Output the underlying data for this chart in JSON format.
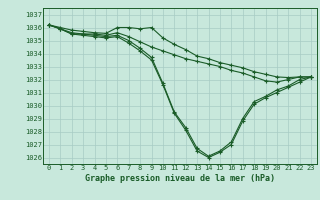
{
  "title": "Graphe pression niveau de la mer (hPa)",
  "background_color": "#c8e8dc",
  "grid_color": "#a8ccc4",
  "line_color": "#1a5c28",
  "xlabel_bg": "#2a7a3a",
  "xlabel_fg": "#c8e8dc",
  "xlim_min": -0.5,
  "xlim_max": 23.5,
  "ylim_min": 1025.5,
  "ylim_max": 1037.5,
  "yticks": [
    1026,
    1027,
    1028,
    1029,
    1030,
    1031,
    1032,
    1033,
    1034,
    1035,
    1036,
    1037
  ],
  "xticks": [
    0,
    1,
    2,
    3,
    4,
    5,
    6,
    7,
    8,
    9,
    10,
    11,
    12,
    13,
    14,
    15,
    16,
    17,
    18,
    19,
    20,
    21,
    22,
    23
  ],
  "series": [
    {
      "x": [
        0,
        1,
        2,
        3,
        4,
        5,
        6,
        7,
        8,
        9,
        10,
        11,
        12,
        13,
        14,
        15,
        16,
        17,
        18,
        19,
        20,
        21,
        22,
        23
      ],
      "y": [
        1036.2,
        1036.0,
        1035.8,
        1035.7,
        1035.6,
        1035.55,
        1036.0,
        1036.0,
        1035.9,
        1036.0,
        1035.2,
        1034.7,
        1034.3,
        1033.8,
        1033.6,
        1033.3,
        1033.1,
        1032.9,
        1032.6,
        1032.4,
        1032.2,
        1032.15,
        1032.2,
        1032.2
      ]
    },
    {
      "x": [
        0,
        1,
        2,
        3,
        4,
        5,
        6,
        7,
        8,
        9,
        10,
        11,
        12,
        13,
        14,
        15,
        16,
        17,
        18,
        19,
        20,
        21,
        22,
        23
      ],
      "y": [
        1036.2,
        1035.9,
        1035.6,
        1035.5,
        1035.5,
        1035.4,
        1035.6,
        1035.3,
        1034.9,
        1034.5,
        1034.2,
        1033.9,
        1033.6,
        1033.4,
        1033.2,
        1033.0,
        1032.7,
        1032.5,
        1032.2,
        1031.9,
        1031.8,
        1032.0,
        1032.2,
        1032.2
      ]
    },
    {
      "x": [
        0,
        1,
        2,
        3,
        4,
        5,
        6,
        7,
        8,
        9,
        10,
        11,
        12,
        13,
        14,
        15,
        16,
        17,
        18,
        19,
        20,
        21,
        22,
        23
      ],
      "y": [
        1036.2,
        1035.9,
        1035.5,
        1035.5,
        1035.4,
        1035.3,
        1035.4,
        1035.0,
        1034.4,
        1033.7,
        1031.7,
        1029.5,
        1028.3,
        1026.7,
        1026.1,
        1026.5,
        1027.2,
        1029.0,
        1030.3,
        1030.7,
        1031.2,
        1031.5,
        1032.0,
        1032.2
      ]
    },
    {
      "x": [
        0,
        1,
        2,
        3,
        4,
        5,
        6,
        7,
        8,
        9,
        10,
        11,
        12,
        13,
        14,
        15,
        16,
        17,
        18,
        19,
        20,
        21,
        22,
        23
      ],
      "y": [
        1036.2,
        1035.9,
        1035.5,
        1035.4,
        1035.3,
        1035.2,
        1035.3,
        1034.8,
        1034.2,
        1033.5,
        1031.6,
        1029.4,
        1028.1,
        1026.5,
        1026.0,
        1026.4,
        1027.0,
        1028.8,
        1030.1,
        1030.6,
        1031.0,
        1031.4,
        1031.8,
        1032.2
      ]
    }
  ]
}
